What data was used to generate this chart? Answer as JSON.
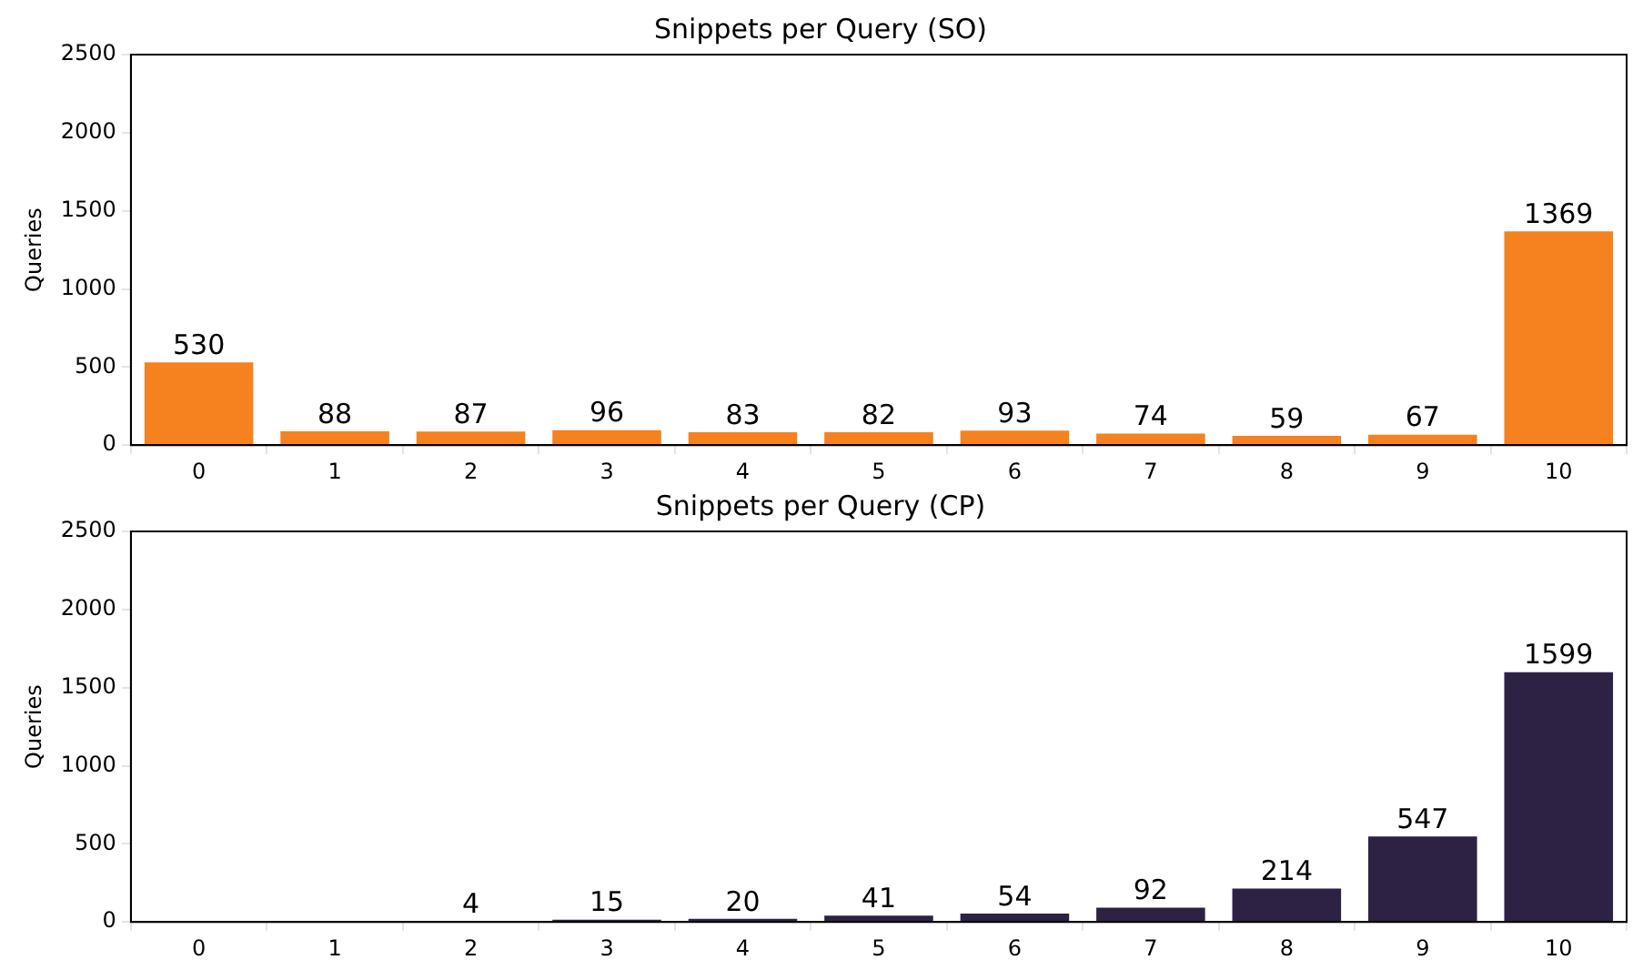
{
  "chart_data": [
    {
      "type": "bar",
      "title": "Snippets per Query (SO)",
      "ylabel": "Queries",
      "categories": [
        "0",
        "1",
        "2",
        "3",
        "4",
        "5",
        "6",
        "7",
        "8",
        "9",
        "10"
      ],
      "values": [
        530,
        88,
        87,
        96,
        83,
        82,
        93,
        74,
        59,
        67,
        1369
      ],
      "color": "#f5821f",
      "ylim": [
        0,
        2500
      ],
      "yticks": [
        0,
        500,
        1000,
        1500,
        2000,
        2500
      ],
      "grid": false,
      "legend": false,
      "data_labels": true
    },
    {
      "type": "bar",
      "title": "Snippets per Query (CP)",
      "ylabel": "Queries",
      "categories": [
        "0",
        "1",
        "2",
        "3",
        "4",
        "5",
        "6",
        "7",
        "8",
        "9",
        "10"
      ],
      "values": [
        0,
        0,
        4,
        15,
        20,
        41,
        54,
        92,
        214,
        547,
        1599
      ],
      "value_labels": [
        null,
        null,
        "4",
        "15",
        "20",
        "41",
        "54",
        "92",
        "214",
        "547",
        "1599"
      ],
      "color": "#2d2244",
      "ylim": [
        0,
        2500
      ],
      "yticks": [
        0,
        500,
        1000,
        1500,
        2000,
        2500
      ],
      "grid": false,
      "legend": false
    }
  ]
}
